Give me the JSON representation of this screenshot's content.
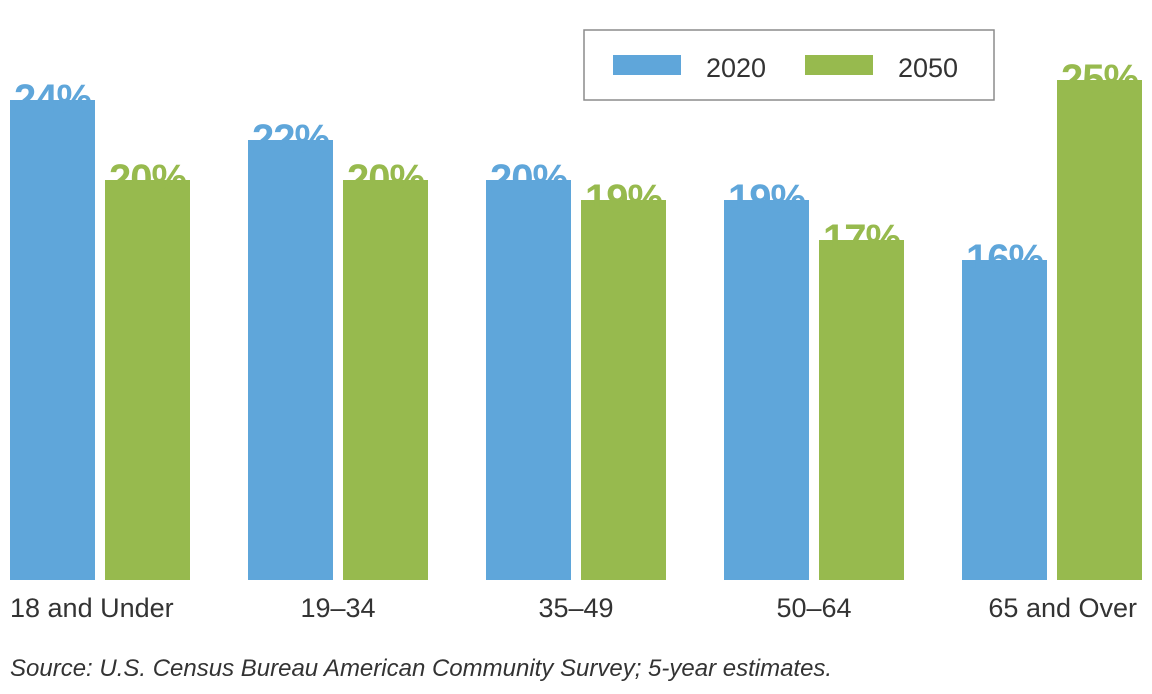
{
  "chart_data": {
    "type": "bar",
    "title": "",
    "xlabel": "",
    "ylabel": "",
    "ylim": [
      0,
      25
    ],
    "grid": false,
    "legend_position": "top-right",
    "categories": [
      "18 and Under",
      "19–34",
      "35–49",
      "50–64",
      "65 and Over"
    ],
    "series": [
      {
        "name": "2020",
        "color": "#5fa6da",
        "values": [
          24,
          22,
          20,
          19,
          16
        ],
        "labels": [
          "24%",
          "22%",
          "20%",
          "19%",
          "16%"
        ]
      },
      {
        "name": "2050",
        "color": "#97ba4e",
        "values": [
          20,
          20,
          19,
          17,
          25
        ],
        "labels": [
          "20%",
          "20%",
          "19%",
          "17%",
          "25%"
        ]
      }
    ]
  },
  "source": "Source: U.S. Census Bureau American Community Survey; 5-year estimates."
}
